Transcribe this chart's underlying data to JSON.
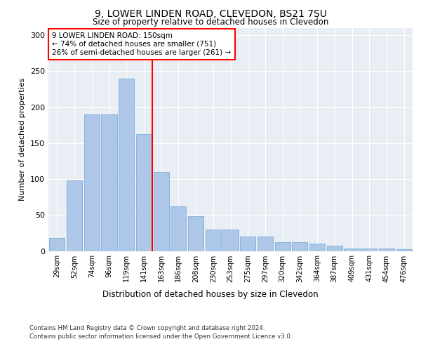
{
  "title1": "9, LOWER LINDEN ROAD, CLEVEDON, BS21 7SU",
  "title2": "Size of property relative to detached houses in Clevedon",
  "xlabel": "Distribution of detached houses by size in Clevedon",
  "ylabel": "Number of detached properties",
  "categories": [
    "29sqm",
    "52sqm",
    "74sqm",
    "96sqm",
    "119sqm",
    "141sqm",
    "163sqm",
    "186sqm",
    "208sqm",
    "230sqm",
    "253sqm",
    "275sqm",
    "297sqm",
    "320sqm",
    "342sqm",
    "364sqm",
    "387sqm",
    "409sqm",
    "431sqm",
    "454sqm",
    "476sqm"
  ],
  "values": [
    18,
    98,
    190,
    190,
    240,
    163,
    110,
    62,
    48,
    30,
    30,
    20,
    20,
    12,
    12,
    10,
    7,
    3,
    3,
    3,
    2
  ],
  "bar_color": "#aec6e8",
  "bar_edge_color": "#7bafd4",
  "vline_x": 5.5,
  "vline_color": "red",
  "annotation_text": "9 LOWER LINDEN ROAD: 150sqm\n← 74% of detached houses are smaller (751)\n26% of semi-detached houses are larger (261) →",
  "annotation_box_color": "white",
  "annotation_box_edge": "red",
  "ylim": [
    0,
    310
  ],
  "yticks": [
    0,
    50,
    100,
    150,
    200,
    250,
    300
  ],
  "background_color": "#e8eef4",
  "footer1": "Contains HM Land Registry data © Crown copyright and database right 2024.",
  "footer2": "Contains public sector information licensed under the Open Government Licence v3.0."
}
